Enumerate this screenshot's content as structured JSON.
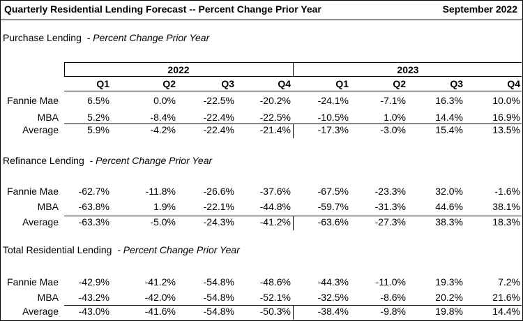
{
  "title": "Quarterly Residential Lending Forecast -- Percent Change Prior Year",
  "date": "September 2022",
  "years": [
    "2022",
    "2023"
  ],
  "quarters": [
    "Q1",
    "Q2",
    "Q3",
    "Q4",
    "Q1",
    "Q2",
    "Q3",
    "Q4"
  ],
  "chart_data": {
    "type": "table",
    "title": "Quarterly Residential Lending Forecast -- Percent Change Prior Year",
    "columns": [
      "2022 Q1",
      "2022 Q2",
      "2022 Q3",
      "2022 Q4",
      "2023 Q1",
      "2023 Q2",
      "2023 Q3",
      "2023 Q4"
    ],
    "sections": [
      {
        "name": "Purchase Lending",
        "subtitle": "- Percent Change Prior Year",
        "rows": [
          {
            "label": "Fannie Mae",
            "values": [
              "6.5%",
              "0.0%",
              "-22.5%",
              "-20.2%",
              "-24.1%",
              "-7.1%",
              "16.3%",
              "10.0%"
            ]
          },
          {
            "label": "MBA",
            "values": [
              "5.2%",
              "-8.4%",
              "-22.4%",
              "-22.5%",
              "-10.5%",
              "1.0%",
              "14.4%",
              "16.9%"
            ]
          },
          {
            "label": "Average",
            "values": [
              "5.9%",
              "-4.2%",
              "-22.4%",
              "-21.4%",
              "-17.3%",
              "-3.0%",
              "15.4%",
              "13.5%"
            ]
          }
        ]
      },
      {
        "name": "Refinance Lending",
        "subtitle": "- Percent Change Prior Year",
        "rows": [
          {
            "label": "Fannie Mae",
            "values": [
              "-62.7%",
              "-11.8%",
              "-26.6%",
              "-37.6%",
              "-67.5%",
              "-23.3%",
              "32.0%",
              "-1.6%"
            ]
          },
          {
            "label": "MBA",
            "values": [
              "-63.8%",
              "1.9%",
              "-22.1%",
              "-44.8%",
              "-59.7%",
              "-31.3%",
              "44.6%",
              "38.1%"
            ]
          },
          {
            "label": "Average",
            "values": [
              "-63.3%",
              "-5.0%",
              "-24.3%",
              "-41.2%",
              "-63.6%",
              "-27.3%",
              "38.3%",
              "18.3%"
            ]
          }
        ]
      },
      {
        "name": "Total Residential Lending",
        "subtitle": "- Percent Change Prior Year",
        "rows": [
          {
            "label": "Fannie Mae",
            "values": [
              "-42.9%",
              "-41.2%",
              "-54.8%",
              "-48.6%",
              "-44.3%",
              "-11.0%",
              "19.3%",
              "7.2%"
            ]
          },
          {
            "label": "MBA",
            "values": [
              "-43.2%",
              "-42.0%",
              "-54.8%",
              "-52.1%",
              "-32.5%",
              "-8.6%",
              "20.2%",
              "21.6%"
            ]
          },
          {
            "label": "Average",
            "values": [
              "-43.0%",
              "-41.6%",
              "-54.8%",
              "-50.3%",
              "-38.4%",
              "-9.8%",
              "19.8%",
              "14.4%"
            ]
          }
        ]
      }
    ]
  }
}
